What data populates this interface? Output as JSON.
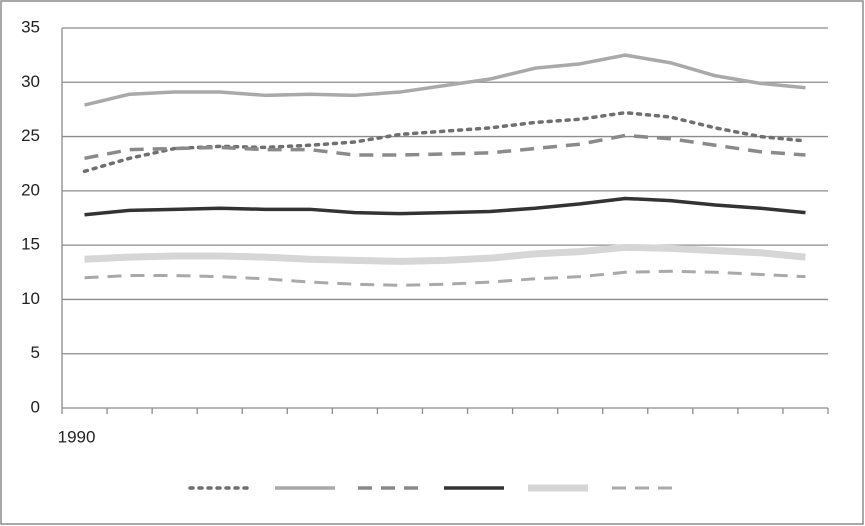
{
  "chart_data": {
    "type": "line",
    "categories": [
      "1990",
      null,
      null,
      null,
      null,
      null,
      null,
      null,
      null,
      null,
      null,
      null,
      null,
      null,
      null,
      null,
      null
    ],
    "series": [
      {
        "color": "#6f6f6f",
        "dash": "dotted",
        "width": 3.5,
        "values": [
          21.8,
          23.0,
          23.9,
          24.1,
          24.0,
          24.2,
          24.5,
          25.2,
          25.5,
          25.8,
          26.3,
          26.6,
          27.2,
          26.8,
          25.8,
          25.0,
          24.6
        ]
      },
      {
        "color": "#a9a9a9",
        "dash": "solid",
        "width": 3.5,
        "values": [
          27.9,
          28.9,
          29.1,
          29.1,
          28.8,
          28.9,
          28.8,
          29.1,
          29.7,
          30.3,
          31.3,
          31.7,
          32.5,
          31.8,
          30.6,
          29.9,
          29.5
        ]
      },
      {
        "color": "#8a8a8a",
        "dash": "dashed",
        "width": 3.5,
        "values": [
          23.0,
          23.8,
          23.9,
          24.0,
          23.8,
          23.8,
          23.3,
          23.3,
          23.4,
          23.5,
          23.9,
          24.3,
          25.1,
          24.8,
          24.2,
          23.6,
          23.3
        ]
      },
      {
        "color": "#333333",
        "dash": "solid",
        "width": 3.5,
        "values": [
          17.8,
          18.2,
          18.3,
          18.4,
          18.3,
          18.3,
          18.0,
          17.9,
          18.0,
          18.1,
          18.4,
          18.8,
          19.3,
          19.1,
          18.7,
          18.4,
          18.0
        ]
      },
      {
        "color": "#d6d6d6",
        "dash": "solid",
        "width": 7,
        "values": [
          13.7,
          13.9,
          14.0,
          14.0,
          13.9,
          13.7,
          13.6,
          13.5,
          13.6,
          13.8,
          14.2,
          14.4,
          14.8,
          14.7,
          14.5,
          14.3,
          13.9
        ]
      },
      {
        "color": "#a9a9a9",
        "dash": "dashed",
        "width": 3,
        "values": [
          12.0,
          12.2,
          12.2,
          12.1,
          11.9,
          11.6,
          11.4,
          11.3,
          11.4,
          11.6,
          11.9,
          12.1,
          12.5,
          12.6,
          12.5,
          12.3,
          12.1
        ]
      }
    ],
    "ylim": [
      0,
      35
    ],
    "yticks": [
      0,
      5,
      10,
      15,
      20,
      25,
      30,
      35
    ],
    "grid": true,
    "legend": "bottom"
  }
}
